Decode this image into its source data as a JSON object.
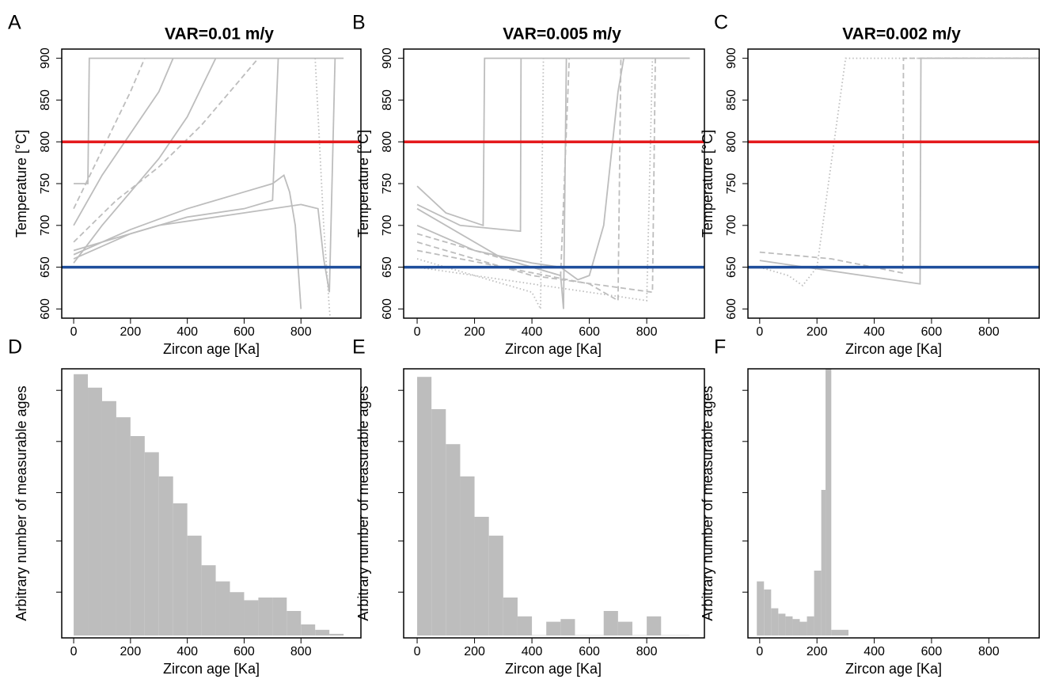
{
  "chart_data": [
    {
      "type": "line",
      "panel": "A",
      "title": "VAR=0.01 m/y",
      "xlabel": "Zircon age [Ka]",
      "ylabel": "Temperature [°C]",
      "xlim": [
        -42,
        1011
      ],
      "ylim": [
        589,
        911
      ],
      "xticks": [
        0,
        200,
        400,
        600,
        800
      ],
      "yticks": [
        600,
        650,
        700,
        750,
        800,
        850,
        900
      ],
      "hlines": [
        {
          "value": 800,
          "color": "#e41a1c"
        },
        {
          "value": 650,
          "color": "#1f4e9c"
        }
      ],
      "series": [
        {
          "color": "#bdbdbd",
          "dash": "solid",
          "x": [
            0,
            50,
            55,
            950
          ],
          "values": [
            750,
            750,
            900,
            900
          ]
        },
        {
          "color": "#bdbdbd",
          "dash": "solid",
          "x": [
            0,
            100,
            200,
            300,
            400,
            500
          ],
          "values": [
            655,
            700,
            740,
            780,
            830,
            900
          ]
        },
        {
          "color": "#bdbdbd",
          "dash": "solid",
          "x": [
            0,
            100,
            200,
            300,
            350
          ],
          "values": [
            700,
            760,
            810,
            860,
            900
          ]
        },
        {
          "color": "#bdbdbd",
          "dash": "solid",
          "x": [
            0,
            200,
            400,
            600,
            700,
            720
          ],
          "values": [
            660,
            690,
            710,
            720,
            730,
            900
          ]
        },
        {
          "color": "#bdbdbd",
          "dash": "solid",
          "x": [
            0,
            200,
            400,
            600,
            700,
            740,
            760,
            780,
            800
          ],
          "values": [
            665,
            695,
            720,
            740,
            750,
            760,
            740,
            700,
            600
          ]
        },
        {
          "color": "#bdbdbd",
          "dash": "dashed",
          "x": [
            0,
            150,
            300,
            450,
            600,
            650
          ],
          "values": [
            680,
            730,
            770,
            820,
            880,
            900
          ]
        },
        {
          "color": "#bdbdbd",
          "dash": "dotted",
          "x": [
            850,
            880,
            900,
            920
          ],
          "values": [
            900,
            700,
            600,
            520
          ]
        },
        {
          "color": "#bdbdbd",
          "dash": "solid",
          "x": [
            0,
            300,
            600,
            800,
            860,
            880,
            900,
            920
          ],
          "values": [
            670,
            700,
            715,
            725,
            720,
            660,
            620,
            900
          ]
        },
        {
          "color": "#bdbdbd",
          "dash": "dashed",
          "x": [
            0,
            100,
            200,
            250
          ],
          "values": [
            720,
            790,
            860,
            900
          ]
        }
      ]
    },
    {
      "type": "line",
      "panel": "B",
      "title": "VAR=0.005 m/y",
      "xlabel": "Zircon age [Ka]",
      "ylabel": "Temperature [°C]",
      "xlim": [
        -47,
        1001
      ],
      "ylim": [
        589,
        911
      ],
      "xticks": [
        0,
        200,
        400,
        600,
        800
      ],
      "yticks": [
        600,
        650,
        700,
        750,
        800,
        850,
        900
      ],
      "hlines": [
        {
          "value": 800,
          "color": "#e41a1c"
        },
        {
          "value": 650,
          "color": "#1f4e9c"
        }
      ],
      "series": [
        {
          "color": "#bdbdbd",
          "dash": "solid",
          "x": [
            0,
            100,
            230,
            235,
            950
          ],
          "values": [
            747,
            715,
            700,
            900,
            900
          ]
        },
        {
          "color": "#bdbdbd",
          "dash": "solid",
          "x": [
            0,
            150,
            360,
            362
          ],
          "values": [
            725,
            700,
            693,
            900
          ]
        },
        {
          "color": "#bdbdbd",
          "dash": "solid",
          "x": [
            0,
            200,
            400,
            500,
            560,
            600,
            650,
            700,
            720,
            950
          ],
          "values": [
            700,
            670,
            655,
            650,
            635,
            640,
            700,
            860,
            900,
            900
          ]
        },
        {
          "color": "#bdbdbd",
          "dash": "dashed",
          "x": [
            0,
            200,
            400,
            500,
            530
          ],
          "values": [
            690,
            670,
            650,
            640,
            900
          ]
        },
        {
          "color": "#bdbdbd",
          "dash": "dotted",
          "x": [
            0,
            200,
            400,
            430,
            440
          ],
          "values": [
            660,
            640,
            620,
            600,
            900
          ]
        },
        {
          "color": "#bdbdbd",
          "dash": "dashed",
          "x": [
            0,
            300,
            600,
            700,
            710
          ],
          "values": [
            670,
            650,
            630,
            610,
            900
          ]
        },
        {
          "color": "#bdbdbd",
          "dash": "solid",
          "x": [
            0,
            300,
            500,
            510,
            520
          ],
          "values": [
            720,
            660,
            640,
            600,
            900
          ]
        },
        {
          "color": "#bdbdbd",
          "dash": "dotted",
          "x": [
            0,
            400,
            800,
            820
          ],
          "values": [
            650,
            630,
            610,
            900
          ]
        },
        {
          "color": "#bdbdbd",
          "dash": "dashed",
          "x": [
            0,
            400,
            820,
            830
          ],
          "values": [
            680,
            640,
            620,
            900
          ]
        }
      ]
    },
    {
      "type": "line",
      "panel": "C",
      "title": "VAR=0.002 m/y",
      "xlabel": "Zircon age [Ka]",
      "ylabel": "Temperature [°C]",
      "xlim": [
        -41,
        976
      ],
      "ylim": [
        589,
        911
      ],
      "xticks": [
        0,
        200,
        400,
        600,
        800
      ],
      "yticks": [
        600,
        650,
        700,
        750,
        800,
        850,
        900
      ],
      "hlines": [
        {
          "value": 800,
          "color": "#e41a1c"
        },
        {
          "value": 650,
          "color": "#1f4e9c"
        }
      ],
      "series": [
        {
          "color": "#bdbdbd",
          "dash": "solid",
          "x": [
            0,
            560,
            563,
            1000
          ],
          "values": [
            658,
            630,
            900,
            900
          ]
        },
        {
          "color": "#bdbdbd",
          "dash": "dashed",
          "x": [
            0,
            250,
            500,
            502,
            1000
          ],
          "values": [
            668,
            660,
            643,
            900,
            900
          ]
        },
        {
          "color": "#bdbdbd",
          "dash": "dotted",
          "x": [
            0,
            100,
            150,
            200,
            300,
            1000
          ],
          "values": [
            650,
            640,
            628,
            650,
            900,
            900
          ]
        }
      ]
    },
    {
      "type": "histogram",
      "panel": "D",
      "xlabel": "Zircon age [Ka]",
      "ylabel": "Arbitrary number of measurable ages",
      "xlim": [
        -42,
        1011
      ],
      "ylim": [
        0,
        100
      ],
      "xticks": [
        0,
        200,
        400,
        600,
        800
      ],
      "ytick_marks": [
        17,
        36,
        54,
        73,
        92
      ],
      "color": "#bdbdbd",
      "bins": [
        0,
        50,
        100,
        150,
        200,
        250,
        300,
        350,
        400,
        450,
        500,
        550,
        600,
        650,
        700,
        750,
        800,
        850,
        900,
        950
      ],
      "counts": [
        98,
        93,
        88,
        82,
        75,
        69,
        60,
        50,
        38,
        27,
        21,
        17,
        14,
        15,
        15,
        10,
        5,
        3,
        1.5
      ]
    },
    {
      "type": "histogram",
      "panel": "E",
      "xlabel": "Zircon age [Ka]",
      "ylabel": "Arbitrary number of measurable ages",
      "xlim": [
        -47,
        1001
      ],
      "ylim": [
        0,
        100
      ],
      "xticks": [
        0,
        200,
        400,
        600,
        800
      ],
      "ytick_marks": [
        17,
        36,
        54,
        73,
        92
      ],
      "color": "#bdbdbd",
      "bins": [
        0,
        50,
        100,
        150,
        200,
        250,
        300,
        350,
        400,
        450,
        500,
        550,
        600,
        650,
        700,
        750,
        800,
        850,
        900,
        950
      ],
      "counts": [
        97,
        85,
        72,
        60,
        45,
        38,
        15,
        8,
        1,
        6,
        7,
        1,
        1,
        10,
        6,
        1,
        8,
        1,
        1
      ]
    },
    {
      "type": "histogram",
      "panel": "F",
      "xlabel": "Zircon age [Ka]",
      "ylabel": "Arbitrary number of measurable ages",
      "xlim": [
        -41,
        976
      ],
      "ylim": [
        0,
        100
      ],
      "xticks": [
        0,
        200,
        400,
        600,
        800
      ],
      "ytick_marks": [
        17,
        36,
        54,
        73,
        92
      ],
      "color": "#bdbdbd",
      "bins": [
        -10,
        15,
        40,
        65,
        90,
        115,
        140,
        165,
        190,
        215,
        230,
        250,
        310
      ],
      "counts": [
        21,
        18,
        11,
        9,
        8,
        7,
        6,
        8,
        25,
        55,
        100,
        3
      ]
    }
  ]
}
